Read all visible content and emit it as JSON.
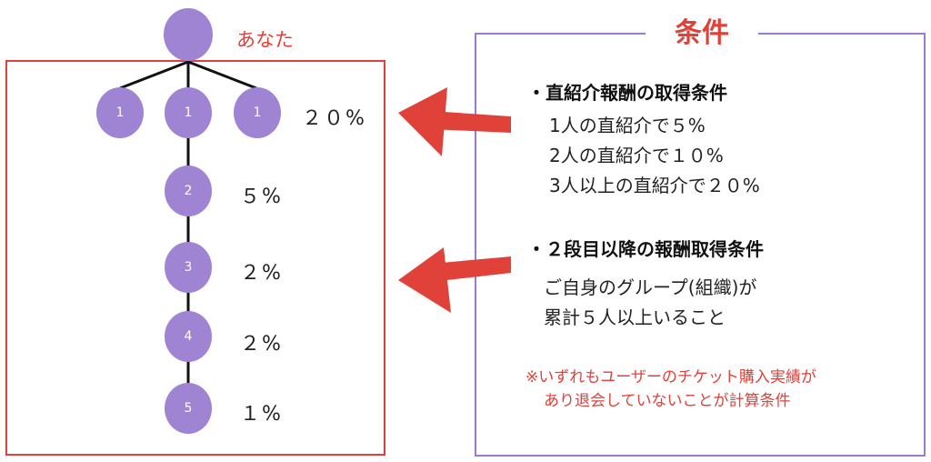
{
  "tree": {
    "you_label": "あなた",
    "level1_node_label": "1",
    "levels": [
      {
        "node_label": "2",
        "percent": "５%"
      },
      {
        "node_label": "3",
        "percent": "２%"
      },
      {
        "node_label": "4",
        "percent": "２%"
      },
      {
        "node_label": "5",
        "percent": "１%"
      }
    ],
    "level1_percent": "２０%"
  },
  "conditions": {
    "title": "条件",
    "direct": {
      "heading": "・直紹介報酬の取得条件",
      "lines": [
        "1人の直紹介で５%",
        "2人の直紹介で１０%",
        "3人以上の直紹介で２０%"
      ]
    },
    "lower": {
      "heading": "・２段目以降の報酬取得条件",
      "lines": [
        "ご自身のグループ(組織)が",
        "累計５人以上いること"
      ]
    },
    "note": [
      "※いずれもユーザーのチケット購入実績が",
      "あり退会していないことが計算条件"
    ]
  },
  "colors": {
    "node": "#9f84d4",
    "accent": "#e0423a",
    "box_purple": "#9a7bd0"
  }
}
